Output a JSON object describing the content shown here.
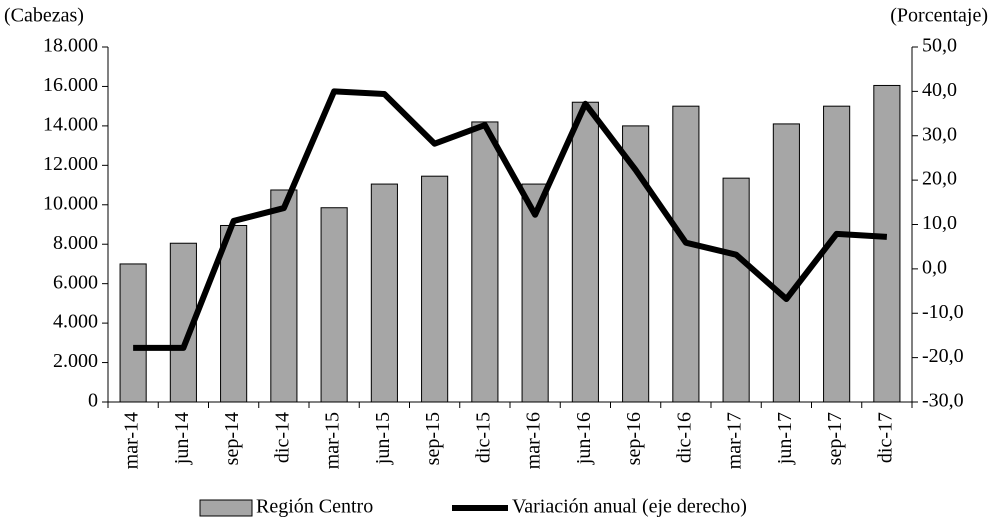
{
  "chart_data": {
    "type": "bar-line",
    "y_label": "(Cabezas)",
    "y2_label": "(Porcentaje)",
    "categories": [
      "mar-14",
      "jun-14",
      "sep-14",
      "dic-14",
      "mar-15",
      "jun-15",
      "sep-15",
      "dic-15",
      "mar-16",
      "jun-16",
      "sep-16",
      "dic-16",
      "mar-17",
      "jun-17",
      "sep-17",
      "dic-17"
    ],
    "series": [
      {
        "name": "Región Centro",
        "type": "bar",
        "color": "#a6a6a6",
        "values": [
          7000,
          8050,
          8950,
          10750,
          9850,
          11050,
          11450,
          14200,
          11050,
          15200,
          14000,
          15000,
          11350,
          14100,
          15000,
          16050
        ]
      },
      {
        "name": "Variación anual (eje derecho)",
        "type": "line",
        "axis": "y2",
        "color": "#000000",
        "values": [
          -17.8,
          -17.8,
          10.8,
          13.7,
          40,
          39.4,
          28.2,
          32.4,
          12.2,
          37.2,
          22.3,
          5.9,
          3.2,
          -6.8,
          7.9,
          7.2
        ]
      }
    ],
    "ylim": [
      0,
      18000
    ],
    "yticks": [
      0,
      {
        "value": 2000,
        "label": "2.000"
      },
      {
        "value": 4000,
        "label": "4.000"
      },
      {
        "value": 6000,
        "label": "6.000"
      },
      {
        "value": 8000,
        "label": "8.000"
      },
      {
        "value": 10000,
        "label": "10.000"
      },
      {
        "value": 12000,
        "label": "12.000"
      },
      {
        "value": 14000,
        "label": "14.000"
      },
      {
        "value": 16000,
        "label": "16.000"
      },
      {
        "value": 18000,
        "label": "18.000"
      }
    ],
    "y2lim": [
      -30,
      50
    ],
    "y2ticks": [
      {
        "value": -30,
        "label": "-30,0"
      },
      {
        "value": -20,
        "label": "-20,0"
      },
      {
        "value": -10,
        "label": "-10,0"
      },
      {
        "value": 0,
        "label": "0,0"
      },
      {
        "value": 10,
        "label": "10,0"
      },
      {
        "value": 20,
        "label": "20,0"
      },
      {
        "value": 30,
        "label": "30,0"
      },
      {
        "value": 40,
        "label": "40,0"
      },
      {
        "value": 50,
        "label": "50,0"
      }
    ],
    "grid": false,
    "legend": "bottom"
  }
}
